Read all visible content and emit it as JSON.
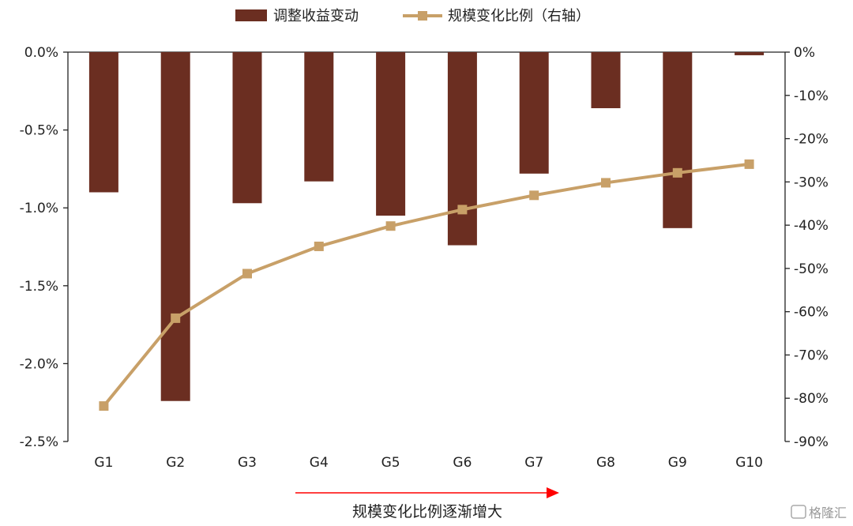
{
  "chart_data": {
    "type": "bar+line",
    "categories": [
      "G1",
      "G2",
      "G3",
      "G4",
      "G5",
      "G6",
      "G7",
      "G8",
      "G9",
      "G10"
    ],
    "series": [
      {
        "name": "调整收益变动",
        "type": "bar",
        "axis": "left",
        "color": "#6b2e21",
        "values": [
          -0.9,
          -2.24,
          -0.97,
          -0.83,
          -1.05,
          -1.24,
          -0.78,
          -0.36,
          -1.13,
          -0.02
        ]
      },
      {
        "name": "规模变化比例（右轴）",
        "type": "line",
        "axis": "right",
        "color": "#c8a068",
        "values": [
          -81.8,
          -61.5,
          -51.2,
          -44.9,
          -40.2,
          -36.4,
          -33.1,
          -30.2,
          -27.9,
          -25.9
        ]
      }
    ],
    "left_axis": {
      "ylim": [
        -2.5,
        0
      ],
      "ticks": [
        0,
        -0.5,
        -1.0,
        -1.5,
        -2.0,
        -2.5
      ],
      "tick_labels": [
        "0.0%",
        "-0.5%",
        "-1.0%",
        "-1.5%",
        "-2.0%",
        "-2.5%"
      ]
    },
    "right_axis": {
      "ylim": [
        -90,
        0
      ],
      "ticks": [
        0,
        -10,
        -20,
        -30,
        -40,
        -50,
        -60,
        -70,
        -80,
        -90
      ],
      "tick_labels": [
        "0%",
        "-10%",
        "-20%",
        "-30%",
        "-40%",
        "-50%",
        "-60%",
        "-70%",
        "-80%",
        "-90%"
      ]
    },
    "legend_position": "top-center",
    "grid": false,
    "annotation": {
      "text": "规模变化比例逐渐增大",
      "arrow_color": "#ff0000"
    }
  },
  "watermark": "格隆汇"
}
